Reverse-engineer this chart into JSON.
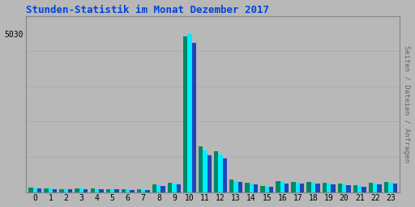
{
  "title": "Stunden-Statistik im Monat Dezember 2017",
  "title_color": "#0044dd",
  "background_color": "#b8b8b8",
  "bar_color_cyan": "#00eeff",
  "bar_color_teal": "#008866",
  "bar_color_blue": "#2244bb",
  "categories": [
    0,
    1,
    2,
    3,
    4,
    5,
    6,
    7,
    8,
    9,
    10,
    11,
    12,
    13,
    14,
    15,
    16,
    17,
    18,
    19,
    20,
    21,
    22,
    23
  ],
  "seiten": [
    145,
    120,
    105,
    125,
    110,
    105,
    98,
    90,
    260,
    310,
    4950,
    1450,
    1300,
    390,
    310,
    200,
    340,
    335,
    325,
    310,
    265,
    215,
    300,
    330
  ],
  "dateien": [
    130,
    108,
    92,
    110,
    95,
    92,
    85,
    78,
    225,
    280,
    5030,
    1330,
    1190,
    355,
    285,
    183,
    315,
    308,
    300,
    285,
    245,
    198,
    275,
    305
  ],
  "anfragen": [
    118,
    95,
    82,
    98,
    85,
    82,
    75,
    68,
    200,
    250,
    4750,
    1180,
    1060,
    315,
    255,
    163,
    280,
    275,
    268,
    255,
    218,
    175,
    248,
    275
  ],
  "ylim": [
    0,
    5600
  ],
  "ytick_val": 5030,
  "grid_lines_y": [
    1120,
    2240,
    3360,
    4480,
    5600
  ],
  "grid_color": "#aaaaaa",
  "bar_width": 0.28,
  "ylabel_right": "Seiten / Dateien / Anfragen",
  "ylabel_right_color": "#666666",
  "tick_fontsize": 7,
  "title_fontsize": 9
}
